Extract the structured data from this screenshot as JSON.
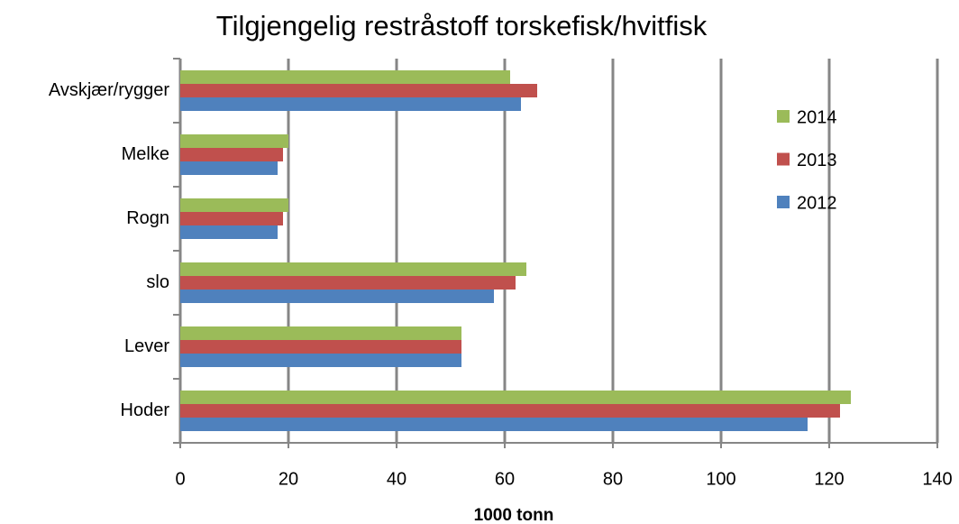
{
  "chart_data": {
    "type": "hbar",
    "title": "Tilgjengelig restråstoff torskefisk/hvitfisk",
    "x_label": "1000 tonn",
    "categories": [
      "Avskjær/rygger",
      "Melke",
      "Rogn",
      "slo",
      "Lever",
      "Hoder"
    ],
    "series": [
      {
        "name": "2012",
        "color": "#4f81bd",
        "values": [
          63,
          18,
          18,
          58,
          52,
          116
        ]
      },
      {
        "name": "2013",
        "color": "#c0504d",
        "values": [
          66,
          19,
          19,
          62,
          52,
          122
        ]
      },
      {
        "name": "2014",
        "color": "#9bbb59",
        "values": [
          61,
          20,
          20,
          64,
          52,
          124
        ]
      }
    ],
    "xlim": [
      0,
      140
    ],
    "xticks": [
      0,
      20,
      40,
      60,
      80,
      100,
      120,
      140
    ],
    "grid": true,
    "legend": "right"
  }
}
